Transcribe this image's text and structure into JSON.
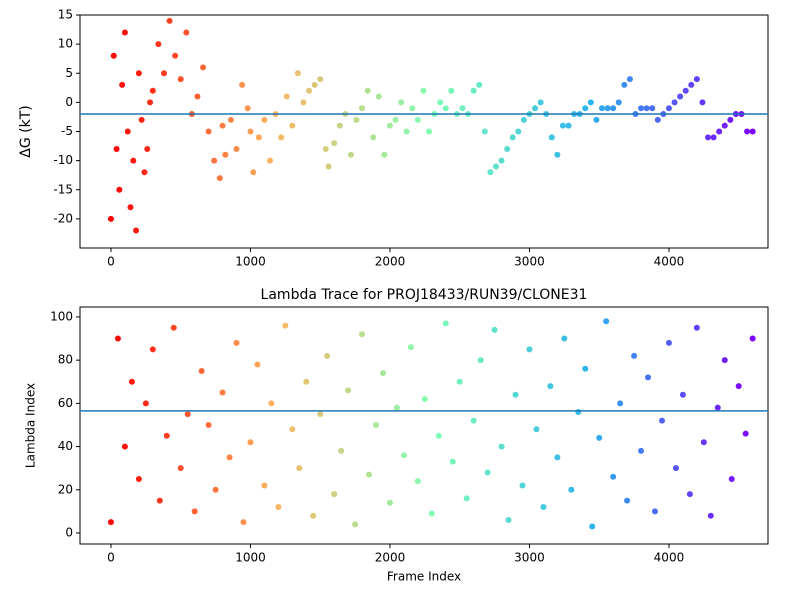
{
  "chart_data": [
    {
      "type": "scatter",
      "ylabel": "ΔG (kT)",
      "x": [
        0,
        20,
        40,
        60,
        80,
        100,
        120,
        140,
        160,
        180,
        200,
        220,
        240,
        260,
        280,
        300,
        340,
        380,
        420,
        460,
        500,
        540,
        580,
        620,
        660,
        700,
        740,
        780,
        800,
        820,
        860,
        900,
        940,
        980,
        1000,
        1020,
        1060,
        1100,
        1140,
        1180,
        1220,
        1260,
        1300,
        1340,
        1380,
        1420,
        1460,
        1500,
        1540,
        1560,
        1600,
        1640,
        1680,
        1720,
        1760,
        1800,
        1840,
        1880,
        1920,
        1960,
        2000,
        2040,
        2080,
        2120,
        2160,
        2200,
        2240,
        2280,
        2320,
        2360,
        2400,
        2440,
        2480,
        2520,
        2560,
        2600,
        2640,
        2680,
        2720,
        2760,
        2800,
        2840,
        2880,
        2920,
        2960,
        3000,
        3040,
        3080,
        3120,
        3160,
        3200,
        3240,
        3280,
        3320,
        3360,
        3400,
        3440,
        3480,
        3520,
        3560,
        3600,
        3640,
        3680,
        3720,
        3760,
        3800,
        3840,
        3880,
        3920,
        3960,
        4000,
        4040,
        4080,
        4120,
        4160,
        4200,
        4240,
        4280,
        4320,
        4360,
        4400,
        4440,
        4480,
        4520,
        4560,
        4600
      ],
      "values": [
        -20,
        8,
        -8,
        -15,
        3,
        12,
        -5,
        -18,
        -10,
        -22,
        5,
        -3,
        -12,
        -8,
        0,
        2,
        10,
        5,
        14,
        8,
        4,
        12,
        -2,
        1,
        6,
        -5,
        -10,
        -13,
        -4,
        -9,
        -3,
        -8,
        3,
        -1,
        -5,
        -12,
        -6,
        -3,
        -10,
        -2,
        -6,
        1,
        -4,
        5,
        0,
        2,
        3,
        4,
        -8,
        -11,
        -7,
        -4,
        -2,
        -9,
        -3,
        -1,
        2,
        -6,
        1,
        -9,
        -4,
        -3,
        0,
        -5,
        -1,
        -3,
        2,
        -5,
        -2,
        0,
        -1,
        2,
        -2,
        -1,
        -2,
        2,
        3,
        -5,
        -12,
        -11,
        -10,
        -8,
        -6,
        -5,
        -3,
        -2,
        -1,
        0,
        -2,
        -6,
        -9,
        -4,
        -4,
        -2,
        -2,
        -1,
        0,
        -3,
        -1,
        -1,
        -1,
        0,
        3,
        4,
        -2,
        -1,
        -1,
        -1,
        -3,
        -2,
        -1,
        0,
        1,
        2,
        3,
        4,
        0,
        -6,
        -6,
        -5,
        -4,
        -3,
        -2,
        -2,
        -5,
        -5
      ],
      "xlim": [
        -222,
        4710
      ],
      "ylim": [
        -25,
        15
      ],
      "xticks": [
        0,
        1000,
        2000,
        3000,
        4000
      ],
      "yticks": [
        -20,
        -15,
        -10,
        -5,
        0,
        5,
        10,
        15
      ],
      "hline": -2,
      "hline_color": "#1f77b4",
      "colormap": [
        "#ff0000",
        "#ffb360",
        "#80ffb4",
        "#2cb1f0",
        "#8000ff"
      ]
    },
    {
      "type": "scatter",
      "title": "Lambda Trace for PROJ18433/RUN39/CLONE31",
      "xlabel": "Frame Index",
      "ylabel": "Lambda Index",
      "x": [
        0,
        50,
        100,
        150,
        200,
        250,
        300,
        350,
        400,
        450,
        500,
        550,
        600,
        650,
        700,
        750,
        800,
        850,
        900,
        950,
        1000,
        1050,
        1100,
        1150,
        1200,
        1250,
        1300,
        1350,
        1400,
        1450,
        1500,
        1550,
        1600,
        1650,
        1700,
        1750,
        1800,
        1850,
        1900,
        1950,
        2000,
        2050,
        2100,
        2150,
        2200,
        2250,
        2300,
        2350,
        2400,
        2450,
        2500,
        2550,
        2600,
        2650,
        2700,
        2750,
        2800,
        2850,
        2900,
        2950,
        3000,
        3050,
        3100,
        3150,
        3200,
        3250,
        3300,
        3350,
        3400,
        3450,
        3500,
        3550,
        3600,
        3650,
        3700,
        3750,
        3800,
        3850,
        3900,
        3950,
        4000,
        4050,
        4100,
        4150,
        4200,
        4250,
        4300,
        4350,
        4400,
        4450,
        4500,
        4550,
        4600
      ],
      "values": [
        5,
        90,
        40,
        70,
        25,
        60,
        85,
        15,
        45,
        95,
        30,
        55,
        10,
        75,
        50,
        20,
        65,
        35,
        88,
        5,
        42,
        78,
        22,
        60,
        12,
        96,
        48,
        30,
        70,
        8,
        55,
        82,
        18,
        38,
        66,
        4,
        92,
        27,
        50,
        74,
        14,
        58,
        36,
        86,
        24,
        62,
        9,
        45,
        97,
        33,
        70,
        16,
        52,
        80,
        28,
        94,
        40,
        6,
        64,
        22,
        85,
        48,
        12,
        68,
        35,
        90,
        20,
        56,
        76,
        3,
        44,
        98,
        26,
        60,
        15,
        82,
        38,
        72,
        10,
        52,
        88,
        30,
        64,
        18,
        95,
        42,
        8,
        58,
        80,
        25,
        68,
        46,
        90
      ],
      "xlim": [
        -222,
        4710
      ],
      "ylim": [
        -5.1,
        104.6
      ],
      "xticks": [
        0,
        1000,
        2000,
        3000,
        4000
      ],
      "yticks": [
        0,
        20,
        40,
        60,
        80,
        100
      ],
      "hline": 56.5,
      "hline_color": "#1f77b4",
      "colormap": [
        "#ff0000",
        "#ffb360",
        "#80ffb4",
        "#2cb1f0",
        "#8000ff"
      ]
    }
  ]
}
